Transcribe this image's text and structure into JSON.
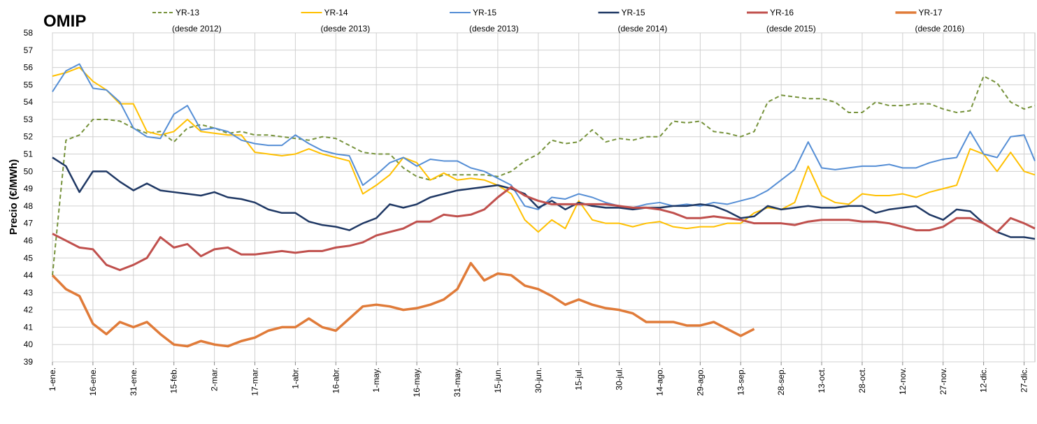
{
  "chart_data": {
    "type": "line",
    "title": "OMIP",
    "y_label": "Precio (€/MWh)",
    "x": [
      0,
      5,
      10,
      15,
      20,
      25,
      30,
      35,
      40,
      45,
      50,
      55,
      60,
      65,
      70,
      75,
      80,
      85,
      90,
      95,
      100,
      105,
      110,
      115,
      120,
      125,
      130,
      135,
      140,
      145,
      150,
      155,
      160,
      165,
      170,
      175,
      180,
      185,
      190,
      195,
      200,
      205,
      210,
      215,
      220,
      225,
      230,
      235,
      240,
      245,
      250,
      255,
      260,
      265,
      270,
      275,
      280,
      285,
      290,
      295,
      300,
      305,
      310,
      315,
      320,
      325,
      330,
      335,
      340,
      345,
      350,
      355,
      360,
      364
    ],
    "xlim": [
      0,
      364
    ],
    "xticks": [
      {
        "value": 0,
        "label": "1-ene."
      },
      {
        "value": 15,
        "label": "16-ene."
      },
      {
        "value": 30,
        "label": "31-ene."
      },
      {
        "value": 45,
        "label": "15-feb."
      },
      {
        "value": 60,
        "label": "2-mar."
      },
      {
        "value": 75,
        "label": "17-mar."
      },
      {
        "value": 90,
        "label": "1-abr."
      },
      {
        "value": 105,
        "label": "16-abr."
      },
      {
        "value": 120,
        "label": "1-may."
      },
      {
        "value": 135,
        "label": "16-may."
      },
      {
        "value": 150,
        "label": "31-may."
      },
      {
        "value": 165,
        "label": "15-jun."
      },
      {
        "value": 180,
        "label": "30-jun."
      },
      {
        "value": 195,
        "label": "15-jul."
      },
      {
        "value": 210,
        "label": "30-jul."
      },
      {
        "value": 225,
        "label": "14-ago."
      },
      {
        "value": 240,
        "label": "29-ago."
      },
      {
        "value": 255,
        "label": "13-sep."
      },
      {
        "value": 270,
        "label": "28-sep."
      },
      {
        "value": 285,
        "label": "13-oct."
      },
      {
        "value": 300,
        "label": "28-oct."
      },
      {
        "value": 315,
        "label": "12-nov."
      },
      {
        "value": 330,
        "label": "27-nov."
      },
      {
        "value": 345,
        "label": "12-dic."
      },
      {
        "value": 360,
        "label": "27-dic."
      }
    ],
    "ylim": [
      39,
      58
    ],
    "yticks": [
      39,
      40,
      41,
      42,
      43,
      44,
      45,
      46,
      47,
      48,
      49,
      50,
      51,
      52,
      53,
      54,
      55,
      56,
      57,
      58
    ],
    "grid": true,
    "series": [
      {
        "name": "YR-13",
        "since": "(desde 2012)",
        "color": "#77933c",
        "dash": true,
        "width": 2,
        "values": [
          44,
          51.8,
          52.1,
          53,
          53,
          52.9,
          52.5,
          52.2,
          52.3,
          51.7,
          52.5,
          52.7,
          52.5,
          52.2,
          52.3,
          52.1,
          52.1,
          52,
          51.9,
          51.8,
          52,
          51.9,
          51.5,
          51.1,
          51,
          51,
          50.2,
          49.7,
          49.5,
          49.8,
          49.8,
          49.8,
          49.8,
          49.7,
          50,
          50.6,
          51,
          51.8,
          51.6,
          51.7,
          52.4,
          51.7,
          51.9,
          51.8,
          52,
          52,
          52.9,
          52.8,
          52.9,
          52.3,
          52.2,
          52,
          52.3,
          54,
          54.4,
          54.3,
          54.2,
          54.2,
          54,
          53.4,
          53.4,
          54,
          53.8,
          53.8,
          53.9,
          53.9,
          53.6,
          53.4,
          53.5,
          55.5,
          55.1,
          54,
          53.6,
          53.8
        ]
      },
      {
        "name": "YR-14",
        "since": "(desde 2013)",
        "color": "#ffc000",
        "width": 2,
        "values": [
          55.5,
          55.7,
          56,
          55.2,
          54.7,
          53.9,
          53.9,
          52.3,
          52.1,
          52.3,
          53,
          52.3,
          52.2,
          52.1,
          52.1,
          51.1,
          51,
          50.9,
          51,
          51.3,
          51,
          50.8,
          50.6,
          48.7,
          49.2,
          49.8,
          50.8,
          50.5,
          49.5,
          49.9,
          49.5,
          49.6,
          49.5,
          49.2,
          48.7,
          47.2,
          46.5,
          47.2,
          46.7,
          48.3,
          47.2,
          47,
          47,
          46.8,
          47,
          47.1,
          46.8,
          46.7,
          46.8,
          46.8,
          47,
          47,
          47.6,
          47.9,
          47.8,
          48.2,
          50.3,
          48.6,
          48.2,
          48.1,
          48.7,
          48.6,
          48.6,
          48.7,
          48.5,
          48.8,
          49,
          49.2,
          51.3,
          51,
          50,
          51.1,
          50,
          49.8
        ]
      },
      {
        "name": "YR-15",
        "since": "(desde 2013)",
        "color": "#558ed5",
        "width": 2,
        "values": [
          54.6,
          55.8,
          56.2,
          54.8,
          54.7,
          54,
          52.5,
          52,
          51.9,
          53.3,
          53.8,
          52.4,
          52.5,
          52.3,
          51.8,
          51.6,
          51.5,
          51.5,
          52.1,
          51.6,
          51.2,
          51,
          50.9,
          49.2,
          49.8,
          50.5,
          50.8,
          50.3,
          50.7,
          50.6,
          50.6,
          50.2,
          50,
          49.6,
          49.2,
          48,
          47.8,
          48.5,
          48.4,
          48.7,
          48.5,
          48.2,
          48,
          47.9,
          48.1,
          48.2,
          48,
          48.1,
          48,
          48.2,
          48.1,
          48.3,
          48.5,
          48.9,
          49.5,
          50.1,
          51.7,
          50.2,
          50.1,
          50.2,
          50.3,
          50.3,
          50.4,
          50.2,
          50.2,
          50.5,
          50.7,
          50.8,
          52.3,
          51,
          50.8,
          52,
          52.1,
          50.6
        ]
      },
      {
        "name": "YR-15",
        "since": "(desde 2014)",
        "color": "#1f3864",
        "width": 2.5,
        "values": [
          50.8,
          50.3,
          48.8,
          50,
          50,
          49.4,
          48.9,
          49.3,
          48.9,
          48.8,
          48.7,
          48.6,
          48.8,
          48.5,
          48.4,
          48.2,
          47.8,
          47.6,
          47.6,
          47.1,
          46.9,
          46.8,
          46.6,
          47,
          47.3,
          48.1,
          47.9,
          48.1,
          48.5,
          48.7,
          48.9,
          49,
          49.1,
          49.2,
          49,
          48.7,
          47.9,
          48.3,
          47.8,
          48.2,
          48,
          47.9,
          47.9,
          47.8,
          47.9,
          47.9,
          48,
          48,
          48.1,
          48,
          47.7,
          47.3,
          47.4,
          48,
          47.8,
          47.9,
          48,
          47.9,
          47.9,
          48,
          48,
          47.6,
          47.8,
          47.9,
          48,
          47.5,
          47.2,
          47.8,
          47.7,
          47,
          46.5,
          46.2,
          46.2,
          46.1
        ]
      },
      {
        "name": "YR-16",
        "since": "(desde 2015)",
        "color": "#c0504d",
        "width": 3,
        "values": [
          46.4,
          46,
          45.6,
          45.5,
          44.6,
          44.3,
          44.6,
          45,
          46.2,
          45.6,
          45.8,
          45.1,
          45.5,
          45.6,
          45.2,
          45.2,
          45.3,
          45.4,
          45.3,
          45.4,
          45.4,
          45.6,
          45.7,
          45.9,
          46.3,
          46.5,
          46.7,
          47.1,
          47.1,
          47.5,
          47.4,
          47.5,
          47.8,
          48.5,
          49.1,
          48.6,
          48.3,
          48.1,
          48.1,
          48.1,
          48.1,
          48.1,
          48,
          47.9,
          47.9,
          47.8,
          47.6,
          47.3,
          47.3,
          47.4,
          47.3,
          47.2,
          47,
          47,
          47,
          46.9,
          47.1,
          47.2,
          47.2,
          47.2,
          47.1,
          47.1,
          47,
          46.8,
          46.6,
          46.6,
          46.8,
          47.3,
          47.3,
          47,
          46.5,
          47.3,
          47,
          46.7
        ]
      },
      {
        "name": "YR-17",
        "since": "(desde 2016)",
        "color": "#e07b39",
        "width": 3.5,
        "values": [
          44,
          43.2,
          42.8,
          41.2,
          40.6,
          41.3,
          41,
          41.3,
          40.6,
          40,
          39.9,
          40.2,
          40,
          39.9,
          40.2,
          40.4,
          40.8,
          41,
          41,
          41.5,
          41,
          40.8,
          41.5,
          42.2,
          42.3,
          42.2,
          42,
          42.1,
          42.3,
          42.6,
          43.2,
          44.7,
          43.7,
          44.1,
          44,
          43.4,
          43.2,
          42.8,
          42.3,
          42.6,
          42.3,
          42.1,
          42,
          41.8,
          41.3,
          41.3,
          41.3,
          41.1,
          41.1,
          41.3,
          40.9,
          40.5,
          40.9,
          null,
          null,
          null,
          null,
          null,
          null,
          null,
          null,
          null,
          null,
          null,
          null,
          null,
          null,
          null,
          null,
          null,
          null,
          null,
          null,
          null
        ]
      }
    ]
  }
}
